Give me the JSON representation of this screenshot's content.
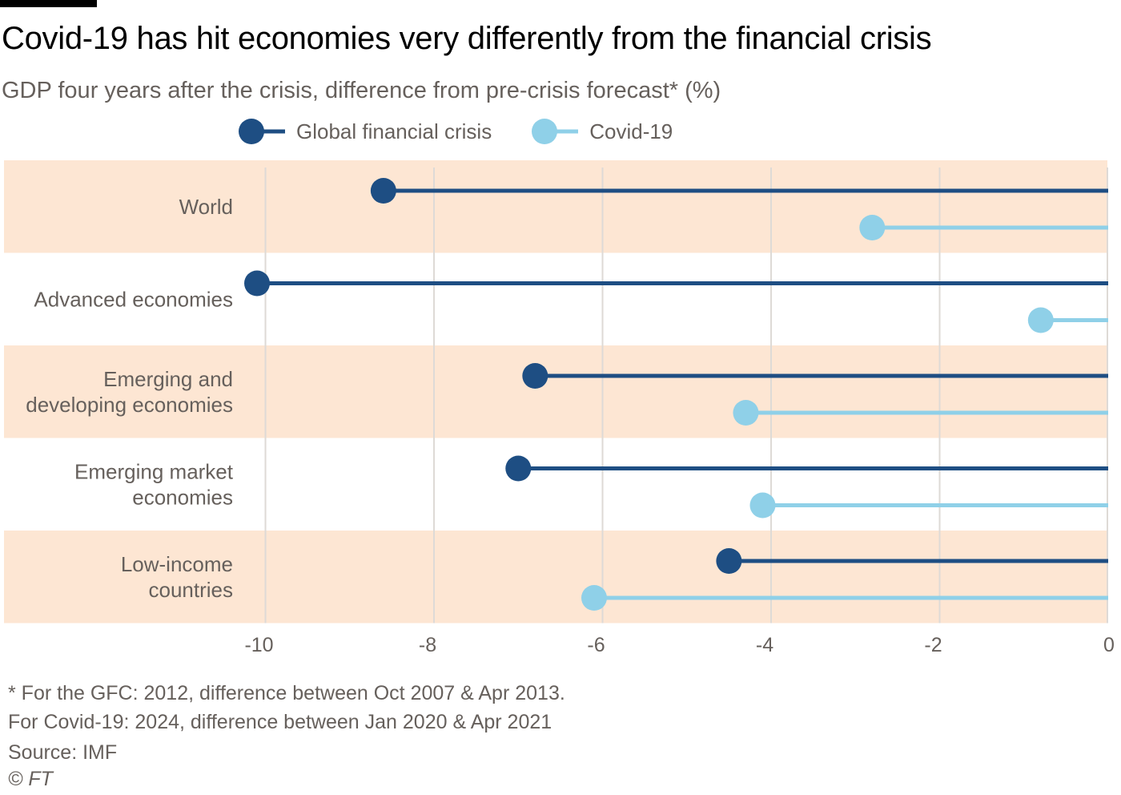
{
  "title": "Covid-19 has hit economies very differently from the financial crisis",
  "subtitle": "GDP four years after the crisis, difference from pre-crisis forecast* (%)",
  "footnote_lines": [
    "* For the GFC: 2012, difference between Oct 2007 & Apr 2013.",
    " For Covid-19: 2024, difference between Jan 2020 & Apr 2021"
  ],
  "source": "Source: IMF",
  "copyright": "© FT",
  "colors": {
    "gfc": "#1e4e83",
    "covid": "#8fd0e8",
    "band": "#fde6d3",
    "grid": "#dedad6",
    "text": "#66605c"
  },
  "chart_data": {
    "type": "dot-plot",
    "title": "Covid-19 has hit economies very differently from the financial crisis",
    "subtitle": "GDP four years after the crisis, difference from pre-crisis forecast* (%)",
    "categories": [
      [
        "World"
      ],
      [
        "Advanced economies"
      ],
      [
        "Emerging and",
        "developing economies"
      ],
      [
        "Emerging market",
        "economies"
      ],
      [
        "Low-income",
        "countries"
      ]
    ],
    "series": [
      {
        "name": "Global financial crisis",
        "color": "#1e4e83",
        "values": [
          -8.6,
          -10.1,
          -6.8,
          -7.0,
          -4.5
        ]
      },
      {
        "name": "Covid-19",
        "color": "#8fd0e8",
        "values": [
          -2.8,
          -0.8,
          -4.3,
          -4.1,
          -6.1
        ]
      }
    ],
    "xlim": [
      -10.1,
      0
    ],
    "xticks": [
      -10,
      -8,
      -6,
      -4,
      -2,
      0
    ],
    "legend_position": "top",
    "grid": true
  }
}
